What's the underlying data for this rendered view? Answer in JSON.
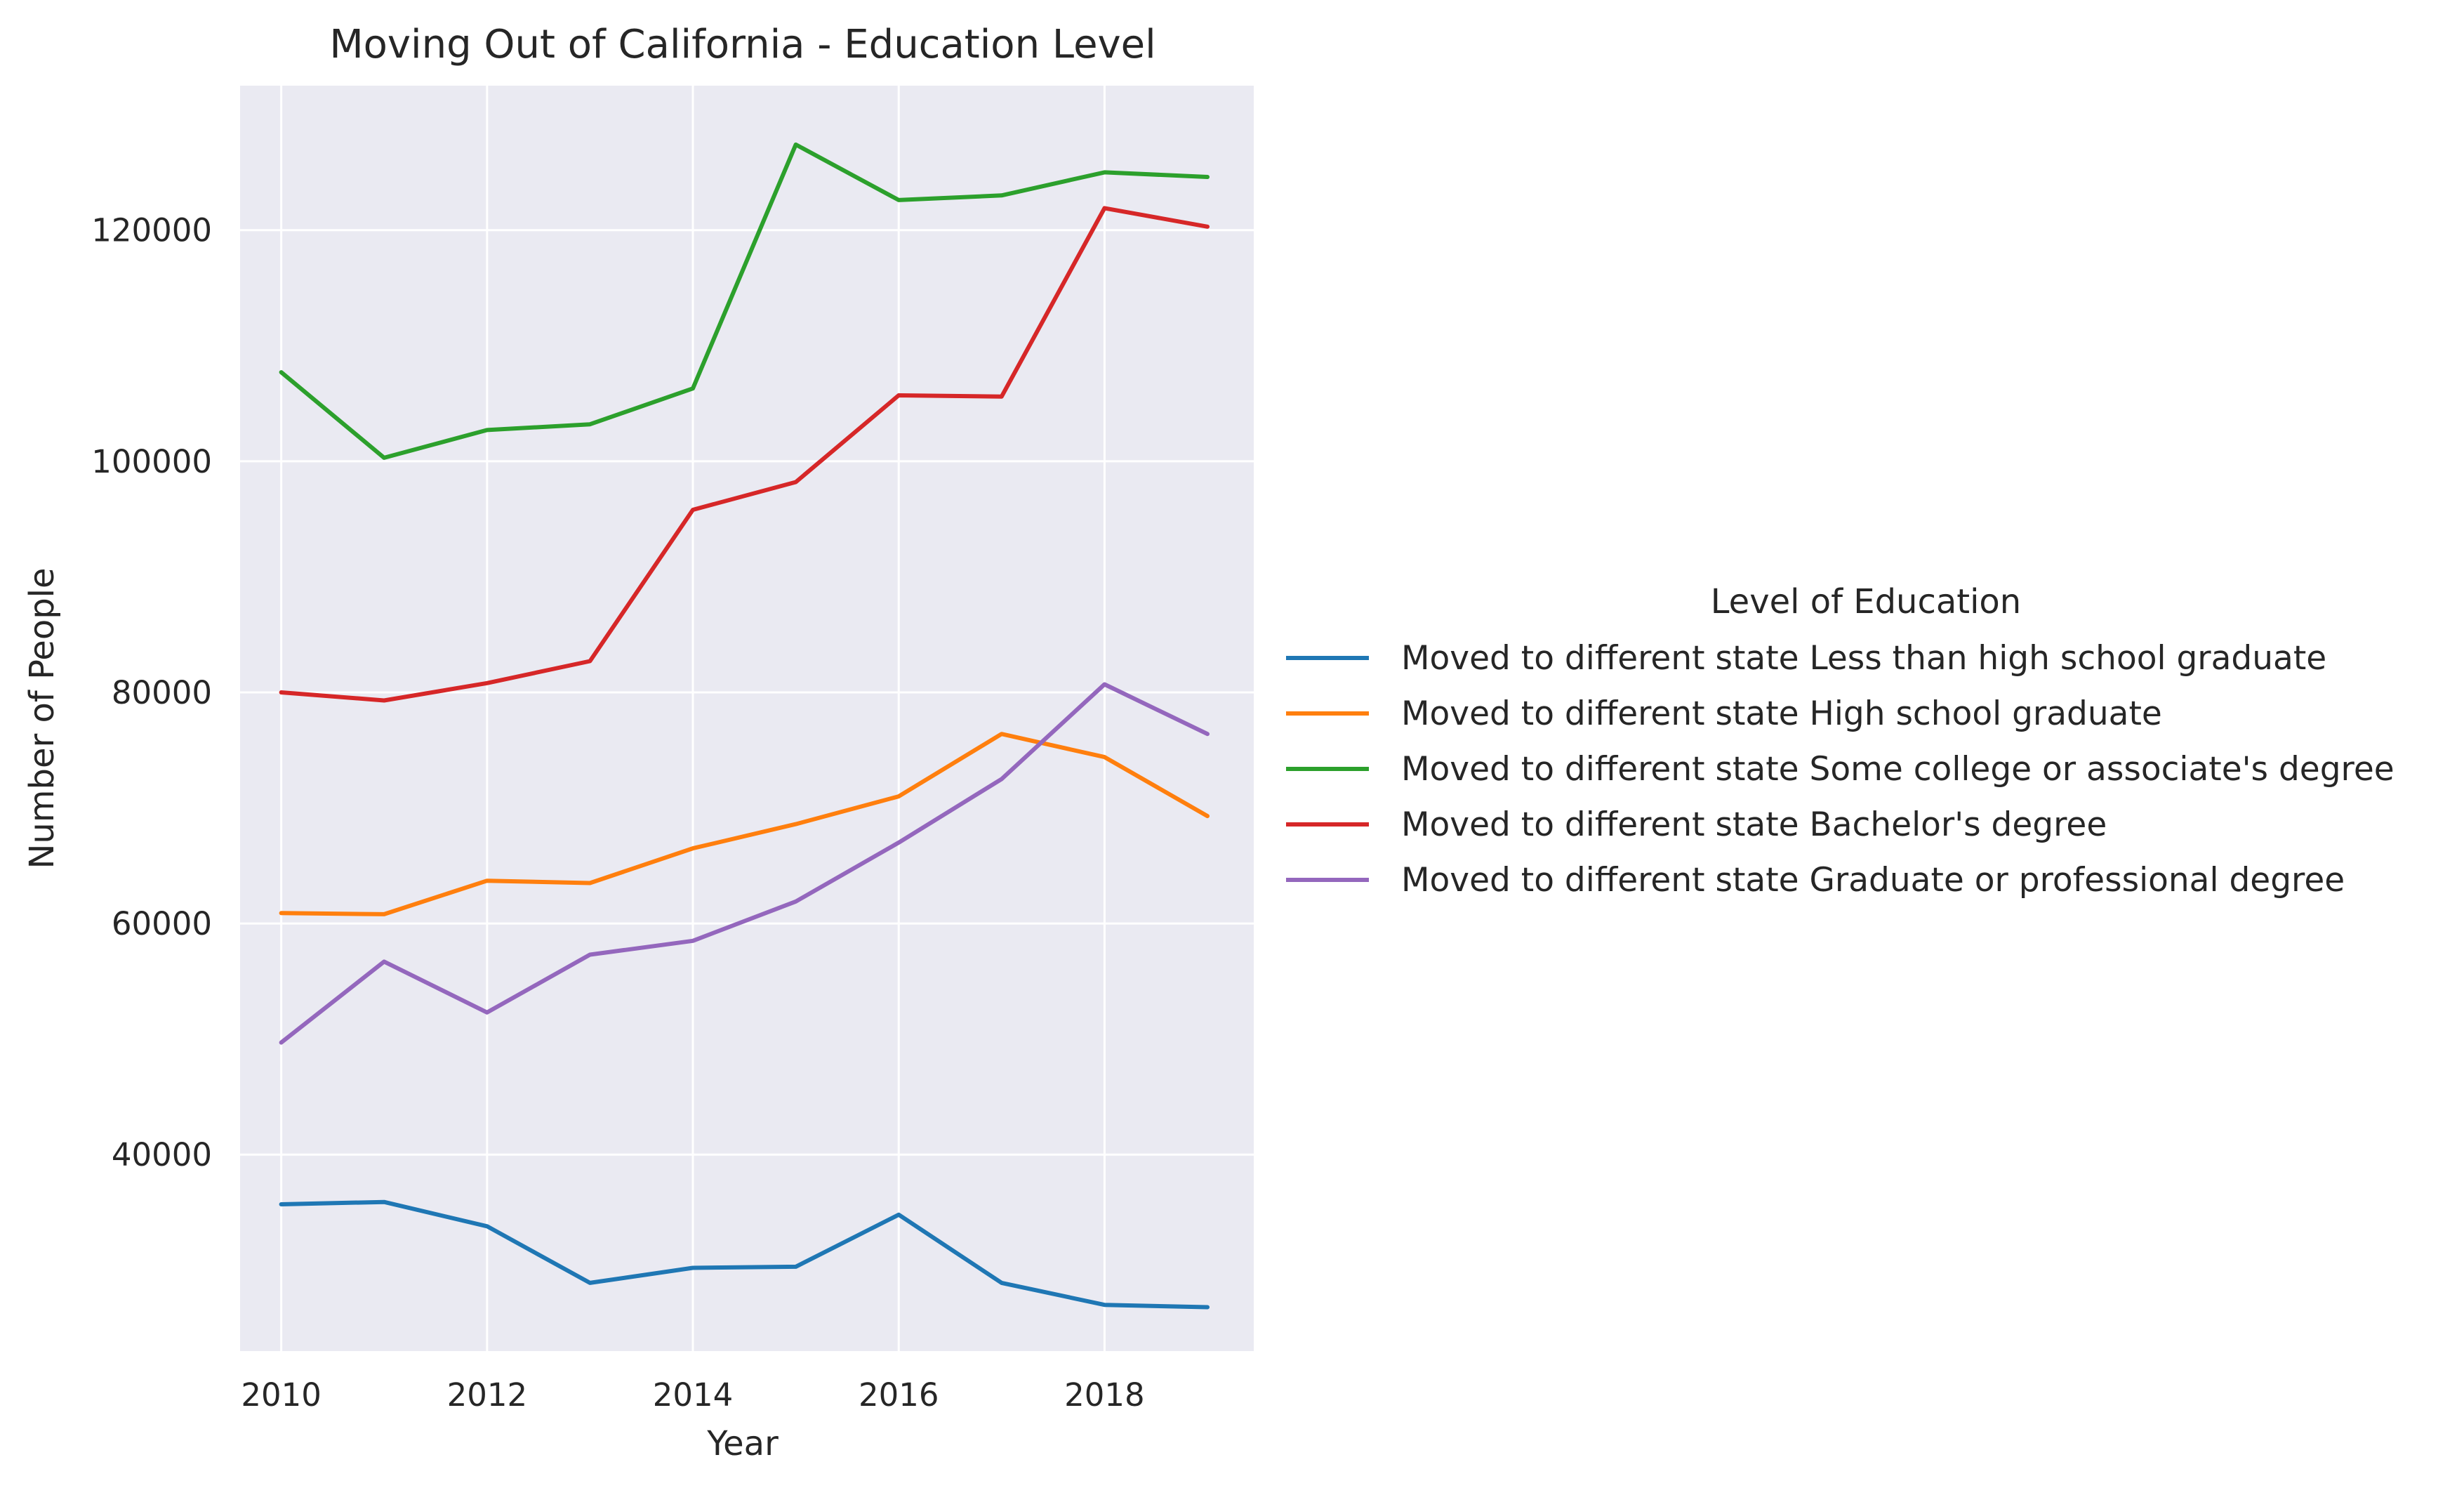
{
  "chart_data": {
    "type": "line",
    "title": "Moving Out of California - Education Level",
    "xlabel": "Year",
    "ylabel": "Number of People",
    "x": [
      2010,
      2011,
      2012,
      2013,
      2014,
      2015,
      2016,
      2017,
      2018,
      2019
    ],
    "xlim": [
      2009.6,
      2019.45
    ],
    "ylim": [
      23000,
      132500
    ],
    "x_ticks": [
      "2010",
      "2012",
      "2014",
      "2016",
      "2018"
    ],
    "y_ticks": [
      "40000",
      "60000",
      "80000",
      "100000",
      "120000"
    ],
    "grid": true,
    "legend": {
      "title": "Level of Education",
      "placement": "right, outside plot"
    },
    "series": [
      {
        "name": "Moved to different state Less than high school graduate",
        "color": "#1f77b4",
        "values": [
          35700,
          35900,
          33800,
          28900,
          30200,
          30300,
          34800,
          28900,
          27000,
          26800
        ]
      },
      {
        "name": "Moved to different state High school graduate",
        "color": "#ff7f0e",
        "values": [
          60900,
          60800,
          63700,
          63500,
          66500,
          68600,
          71000,
          76400,
          74400,
          69300
        ]
      },
      {
        "name": "Moved to different state Some college or associate's degree",
        "color": "#2ca02c",
        "values": [
          107700,
          100300,
          102700,
          103200,
          106300,
          127400,
          122600,
          123000,
          125000,
          124600
        ]
      },
      {
        "name": "Moved to different state Bachelor's degree",
        "color": "#d62728",
        "values": [
          80000,
          79300,
          80800,
          82700,
          95800,
          98200,
          105700,
          105600,
          121900,
          120300
        ]
      },
      {
        "name": "Moved to different state Graduate or professional degree",
        "color": "#9467bd",
        "values": [
          49700,
          56700,
          52300,
          57300,
          58500,
          61900,
          67000,
          72500,
          80700,
          76400
        ]
      }
    ]
  },
  "colors": {
    "plot_background": "#eaeaf2",
    "grid": "#ffffff",
    "text": "#262626"
  }
}
